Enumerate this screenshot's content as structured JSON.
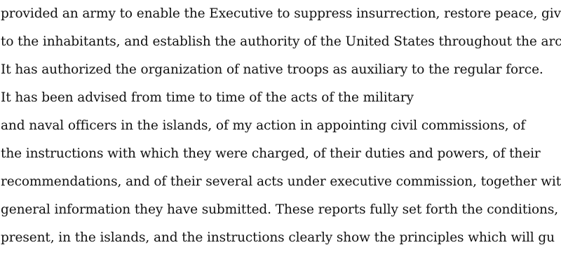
{
  "document": {
    "lines": [
      "provided an army to enable the Executive to suppress insurrection, restore peace, give secur",
      "to the inhabitants, and establish the authority of the United States throughout the archipela",
      "It has authorized the organization of native troops as auxiliary to the regular force.",
      "It has been advised from time to time of the acts of the military",
      "and naval officers in the islands, of my action in appointing civil commissions, of",
      "the instructions with which they were charged, of their duties and powers, of their",
      "recommendations, and of their several acts under executive commission, together with the",
      "general information they have submitted. These reports fully set forth the conditions, past a",
      "present, in the islands, and the instructions clearly show the principles which will gu"
    ]
  }
}
